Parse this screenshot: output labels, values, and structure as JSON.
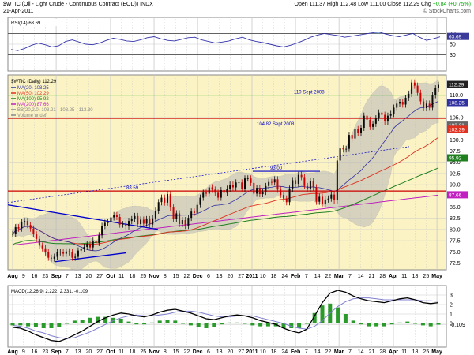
{
  "header": {
    "title": "$WTIC (Oil - Light Crude - Continuous Contract (EOD)) INDX",
    "date": "21-Apr-2011",
    "open_label": "Open",
    "open": "111.37",
    "high_label": "High",
    "high": "112.48",
    "low_label": "Low",
    "low": "111.00",
    "close_label": "Close",
    "close": "112.29",
    "chg_label": "Chg",
    "chg": "+0.84 (+0.75%)",
    "brand": "© StockCharts.com"
  },
  "colors": {
    "bg_panel": "#fbf3c4",
    "grid": "#c9c9c9",
    "up": "#0a0a0a",
    "down": "#cc0000",
    "ma20": "#3030a0",
    "ma50": "#e03020",
    "ma100": "#208020",
    "ma200": "#c020c0",
    "bb": "#b8b8b8",
    "trend": "#0000cc",
    "red_line": "#cc0000",
    "green_line": "#00aa00",
    "rsi": "#3333aa",
    "rsi_fill": "#5a90c8",
    "macd": "#000000",
    "signal": "#8080d0",
    "hist": "#2a9a2a"
  },
  "chart_data": [
    {
      "type": "line",
      "panel": "RSI",
      "legend": "RSI(14) 63.69",
      "ylim": [
        0,
        100
      ],
      "y_ticks": [
        "70",
        "50",
        "30"
      ],
      "levels": [
        70,
        30
      ],
      "series": [
        {
          "name": "RSI(14)",
          "values": [
            40,
            38,
            42,
            48,
            52,
            49,
            45,
            47,
            55,
            58,
            54,
            50,
            49,
            52,
            57,
            61,
            59,
            56,
            55,
            58,
            62,
            64,
            60,
            57,
            56,
            59,
            62,
            63,
            58,
            55,
            52,
            54,
            56,
            60,
            63,
            58,
            55,
            53,
            50,
            47,
            45,
            48,
            52,
            57,
            63,
            67,
            70,
            68,
            66,
            63,
            65,
            67,
            69,
            71,
            73,
            69,
            66,
            64,
            67,
            70,
            63,
            57,
            60,
            63.69
          ]
        }
      ],
      "last_label": "63.69"
    },
    {
      "type": "bar",
      "panel": "Price",
      "legend_title": "$WTIC (Daily) 112.29",
      "legend": [
        "MA(20) 108.25",
        "MA(50) 102.29",
        "MA(100) 95.92",
        "MA(200) 87.66",
        "BB(20,2.0) 103.21 - 108.25 - 113.30",
        "Volume undef"
      ],
      "ylim": [
        71,
        114.5
      ],
      "y_ticks": [
        "110.0",
        "105.0",
        "100.0",
        "97.5",
        "95.0",
        "92.5",
        "90.0",
        "87.5",
        "85.0",
        "82.5",
        "80.0",
        "77.5",
        "75.0",
        "72.5"
      ],
      "x_ticks": [
        "Aug",
        "9",
        "16",
        "23",
        "Sep",
        "7",
        "13",
        "20",
        "27",
        "Oct",
        "11",
        "18",
        "25",
        "Nov",
        "8",
        "15",
        "22",
        "Dec",
        "6",
        "13",
        "20",
        "27",
        "2011",
        "10",
        "18",
        "24",
        "Feb",
        "7",
        "14",
        "22",
        "Mar",
        "7",
        "14",
        "21",
        "28",
        "Apr",
        "11",
        "18",
        "25",
        "May"
      ],
      "x_ticks_bold": [
        "Aug",
        "Sep",
        "Oct",
        "Nov",
        "Dec",
        "2011",
        "Feb",
        "Mar",
        "Apr",
        "May"
      ],
      "series": [
        {
          "name": "$WTIC",
          "values": [
            79.0,
            80.5,
            80.2,
            81.6,
            81.9,
            81.0,
            80.2,
            78.9,
            77.9,
            76.4,
            75.8,
            74.9,
            73.7,
            73.5,
            73.9,
            74.9,
            75.0,
            74.6,
            75.1,
            74.9,
            73.7,
            73.9,
            75.3,
            75.7,
            76.1,
            76.8,
            76.0,
            77.5,
            77.0,
            78.7,
            80.8,
            81.5,
            81.6,
            82.7,
            83.2,
            82.8,
            81.1,
            81.2,
            80.7,
            81.9,
            82.3,
            83.0,
            81.2,
            82.2,
            81.3,
            82.3,
            81.1,
            82.5,
            84.2,
            86.1,
            87.1,
            86.0,
            87.9,
            84.9,
            82.4,
            83.6,
            81.2,
            82.1,
            80.8,
            82.6,
            84.0,
            83.7,
            85.5,
            87.1,
            88.2,
            88.0,
            89.4,
            88.9,
            88.2,
            87.1,
            88.8,
            88.2,
            89.1,
            90.0,
            89.4,
            90.5,
            90.5,
            89.1,
            91.4,
            91.4,
            90.4,
            88.0,
            89.3,
            87.9,
            88.4,
            89.7,
            90.6,
            90.5,
            91.2,
            88.9,
            87.7,
            86.9,
            86.1,
            89.1,
            91.0,
            90.2,
            92.2,
            91.7,
            89.7,
            89.0,
            90.9,
            89.4,
            86.2,
            87.3,
            85.6,
            86.7,
            86.9,
            87.8,
            86.5,
            95.4,
            98.1,
            97.9,
            98.0,
            101.1,
            100.3,
            102.4,
            101.5,
            102.7,
            105.4,
            104.5,
            102.9,
            103.6,
            104.8,
            106.1,
            105.6,
            104.1,
            105.4,
            105.8,
            107.2,
            108.1,
            108.5,
            107.9,
            109.4,
            110.3,
            112.8,
            112.1,
            110.5,
            108.6,
            107.1,
            108.1,
            107.2,
            110.0,
            111.5,
            112.29
          ]
        }
      ],
      "annotations": [
        {
          "text": "88.59",
          "value": 88.59
        },
        {
          "text": "93.00",
          "value": 93.0
        },
        {
          "text": "104.82 Sept 2008",
          "value": 104.82
        },
        {
          "text": "110 Sept 2008",
          "value": 110.0
        }
      ],
      "right_labels": [
        "112.29",
        "108.25",
        "103.21",
        "102.29",
        "95.92",
        "87.66"
      ]
    },
    {
      "type": "bar",
      "panel": "MACD",
      "legend": "MACD(12,26,9) 2.222, 2.331, -0.109",
      "y_ticks": [
        "3",
        "2",
        "1",
        "0",
        "-0.109"
      ],
      "series": [
        {
          "name": "MACD",
          "values": [
            -0.4,
            -0.5,
            -0.8,
            -1.2,
            -1.5,
            -1.8,
            -1.9,
            -1.6,
            -1.2,
            -0.8,
            -0.3,
            0.2,
            0.6,
            0.9,
            1.1,
            1.0,
            0.8,
            0.7,
            0.9,
            1.2,
            1.4,
            1.5,
            1.3,
            1.1,
            0.8,
            0.5,
            0.4,
            0.6,
            0.8,
            0.9,
            0.8,
            0.6,
            0.3,
            0.1,
            -0.1,
            -0.5,
            -0.8,
            -1.0,
            -0.6,
            0.8,
            2.2,
            3.2,
            3.5,
            3.3,
            2.9,
            2.6,
            2.4,
            2.3,
            2.2,
            2.4,
            2.6,
            2.7,
            2.5,
            2.2,
            2.1,
            2.2
          ]
        },
        {
          "name": "Signal",
          "values": [
            -0.2,
            -0.3,
            -0.5,
            -0.8,
            -1.0,
            -1.3,
            -1.5,
            -1.6,
            -1.5,
            -1.2,
            -0.9,
            -0.5,
            -0.1,
            0.3,
            0.6,
            0.8,
            0.9,
            0.8,
            0.8,
            0.9,
            1.0,
            1.2,
            1.3,
            1.3,
            1.2,
            1.0,
            0.8,
            0.7,
            0.7,
            0.8,
            0.8,
            0.8,
            0.6,
            0.4,
            0.2,
            0.0,
            -0.3,
            -0.5,
            -0.6,
            -0.3,
            0.3,
            1.1,
            1.8,
            2.3,
            2.6,
            2.7,
            2.7,
            2.6,
            2.5,
            2.5,
            2.5,
            2.5,
            2.5,
            2.4,
            2.4,
            2.33
          ]
        }
      ]
    }
  ]
}
